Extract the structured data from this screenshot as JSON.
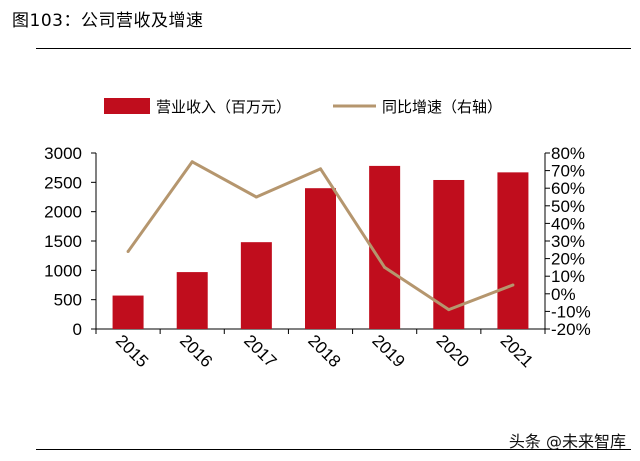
{
  "header": {
    "title": "图103：公司营收及增速"
  },
  "watermark": {
    "text": "头条 @未来智库"
  },
  "chart_data": {
    "type": "bar",
    "categories": [
      "2015",
      "2016",
      "2017",
      "2018",
      "2019",
      "2020",
      "2021"
    ],
    "series": [
      {
        "name": "营业收入（百万元）",
        "type": "bar",
        "axis": "left",
        "color": "#c00d1d",
        "values": [
          570,
          970,
          1480,
          2400,
          2780,
          2540,
          2670
        ]
      },
      {
        "name": "同比增速（右轴）",
        "type": "line",
        "axis": "right",
        "color": "#b5966e",
        "values": [
          24,
          75,
          55,
          71,
          15,
          -9,
          5
        ]
      }
    ],
    "left_axis": {
      "ylim": [
        0,
        3000
      ],
      "ticks": [
        0,
        500,
        1000,
        1500,
        2000,
        2500,
        3000
      ],
      "tick_labels": [
        "0",
        "500",
        "1000",
        "1500",
        "2000",
        "2500",
        "3000"
      ]
    },
    "right_axis": {
      "ylim": [
        -20,
        80
      ],
      "ticks": [
        -20,
        -10,
        0,
        10,
        20,
        30,
        40,
        50,
        60,
        70,
        80
      ],
      "tick_labels": [
        "-20%",
        "-10%",
        "0%",
        "10%",
        "20%",
        "30%",
        "40%",
        "50%",
        "60%",
        "70%",
        "80%"
      ]
    },
    "legend_position": "top",
    "grid": false
  }
}
